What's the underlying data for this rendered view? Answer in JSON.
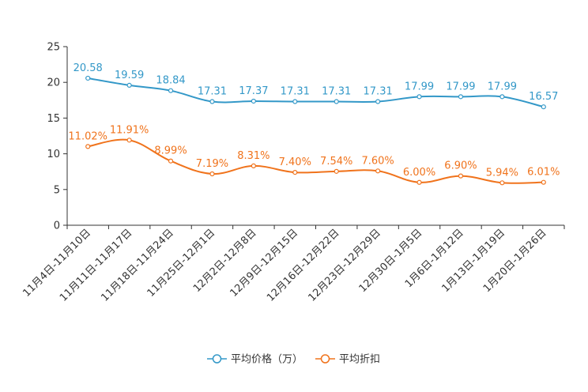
{
  "chart_data": {
    "type": "line",
    "categories": [
      "11月4日-11月10日",
      "11月11日-11月17日",
      "11月18日-11月24日",
      "11月25日-12月1日",
      "12月2日-12月8日",
      "12月9日-12月15日",
      "12月16日-12月22日",
      "12月23日-12月29日",
      "12月30日-1月5日",
      "1月6日-1月12日",
      "1月13日-1月19日",
      "1月20日-1月26日"
    ],
    "series": [
      {
        "name": "平均价格（万）",
        "color": "#3398c8",
        "values": [
          20.58,
          19.59,
          18.84,
          17.31,
          17.37,
          17.31,
          17.31,
          17.31,
          17.99,
          17.99,
          17.99,
          16.57
        ],
        "labels": [
          "20.58",
          "19.59",
          "18.84",
          "17.31",
          "17.37",
          "17.31",
          "17.31",
          "17.31",
          "17.99",
          "17.99",
          "17.99",
          "16.57"
        ]
      },
      {
        "name": "平均折扣",
        "color": "#f0731c",
        "values": [
          11.02,
          11.91,
          8.99,
          7.19,
          8.31,
          7.4,
          7.54,
          7.6,
          6.0,
          6.9,
          5.94,
          6.01
        ],
        "labels": [
          "11.02%",
          "11.91%",
          "8.99%",
          "7.19%",
          "8.31%",
          "7.40%",
          "7.54%",
          "7.60%",
          "6.00%",
          "6.90%",
          "5.94%",
          "6.01%"
        ]
      }
    ],
    "yticks": [
      "0",
      "5",
      "10",
      "15",
      "20",
      "25"
    ],
    "ylim": [
      0,
      25
    ],
    "legend_position": "bottom-center"
  }
}
